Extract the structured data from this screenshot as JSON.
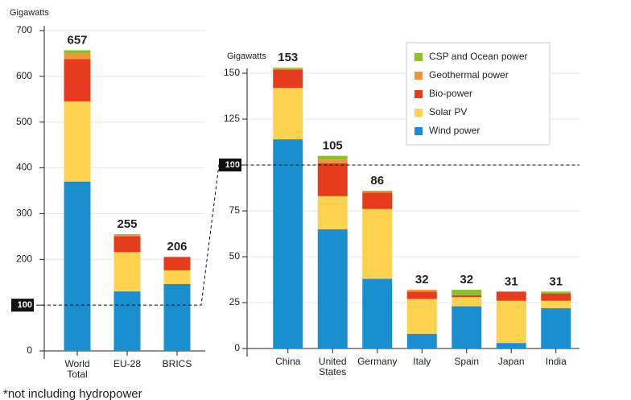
{
  "chart_data": [
    {
      "type": "stacked_bar",
      "ylabel": "Gigawatts",
      "categories": [
        "World Total",
        "EU-28",
        "BRICS"
      ],
      "series": [
        {
          "color": "#1a8fcf",
          "values": [
            370,
            130,
            146
          ]
        },
        {
          "color": "#fdd24e",
          "values": [
            175,
            86,
            30
          ]
        },
        {
          "color": "#e63c1e",
          "values": [
            93,
            35,
            29
          ]
        },
        {
          "color": "#f39536",
          "values": [
            12,
            2,
            1
          ]
        },
        {
          "color": "#8cbf2b",
          "values": [
            7,
            2,
            0
          ]
        }
      ],
      "totals": [
        657,
        255,
        206
      ],
      "ylim": [
        0,
        700
      ],
      "yticks": [
        0,
        100,
        200,
        300,
        400,
        500,
        600,
        700
      ],
      "reference_line": 100,
      "grid": true
    },
    {
      "type": "stacked_bar",
      "ylabel": "Gigawatts",
      "categories": [
        "China",
        "United States",
        "Germany",
        "Italy",
        "Spain",
        "Japan",
        "India"
      ],
      "series": [
        {
          "name": "Wind power",
          "color": "#1a8fcf",
          "values": [
            114,
            65,
            38,
            8,
            23,
            3,
            22
          ]
        },
        {
          "name": "Solar PV",
          "color": "#fdd24e",
          "values": [
            28,
            18,
            38,
            19,
            5,
            23,
            4
          ]
        },
        {
          "name": "Bio-power",
          "color": "#e63c1e",
          "values": [
            10,
            18,
            9,
            4,
            1,
            5,
            4
          ]
        },
        {
          "name": "Geothermal power",
          "color": "#f39536",
          "values": [
            0.5,
            2,
            0.5,
            1,
            0,
            0,
            0
          ]
        },
        {
          "name": "CSP and Ocean power",
          "color": "#8cbf2b",
          "values": [
            0.5,
            2,
            0.5,
            0,
            3,
            0,
            1
          ]
        }
      ],
      "totals": [
        153,
        105,
        86,
        32,
        32,
        31,
        31
      ],
      "ylim": [
        0,
        150
      ],
      "yticks": [
        0,
        25,
        50,
        75,
        100,
        125,
        150
      ],
      "reference_line": 100,
      "grid": true,
      "legend": "top-right"
    }
  ],
  "footnote": "*not including hydropower"
}
